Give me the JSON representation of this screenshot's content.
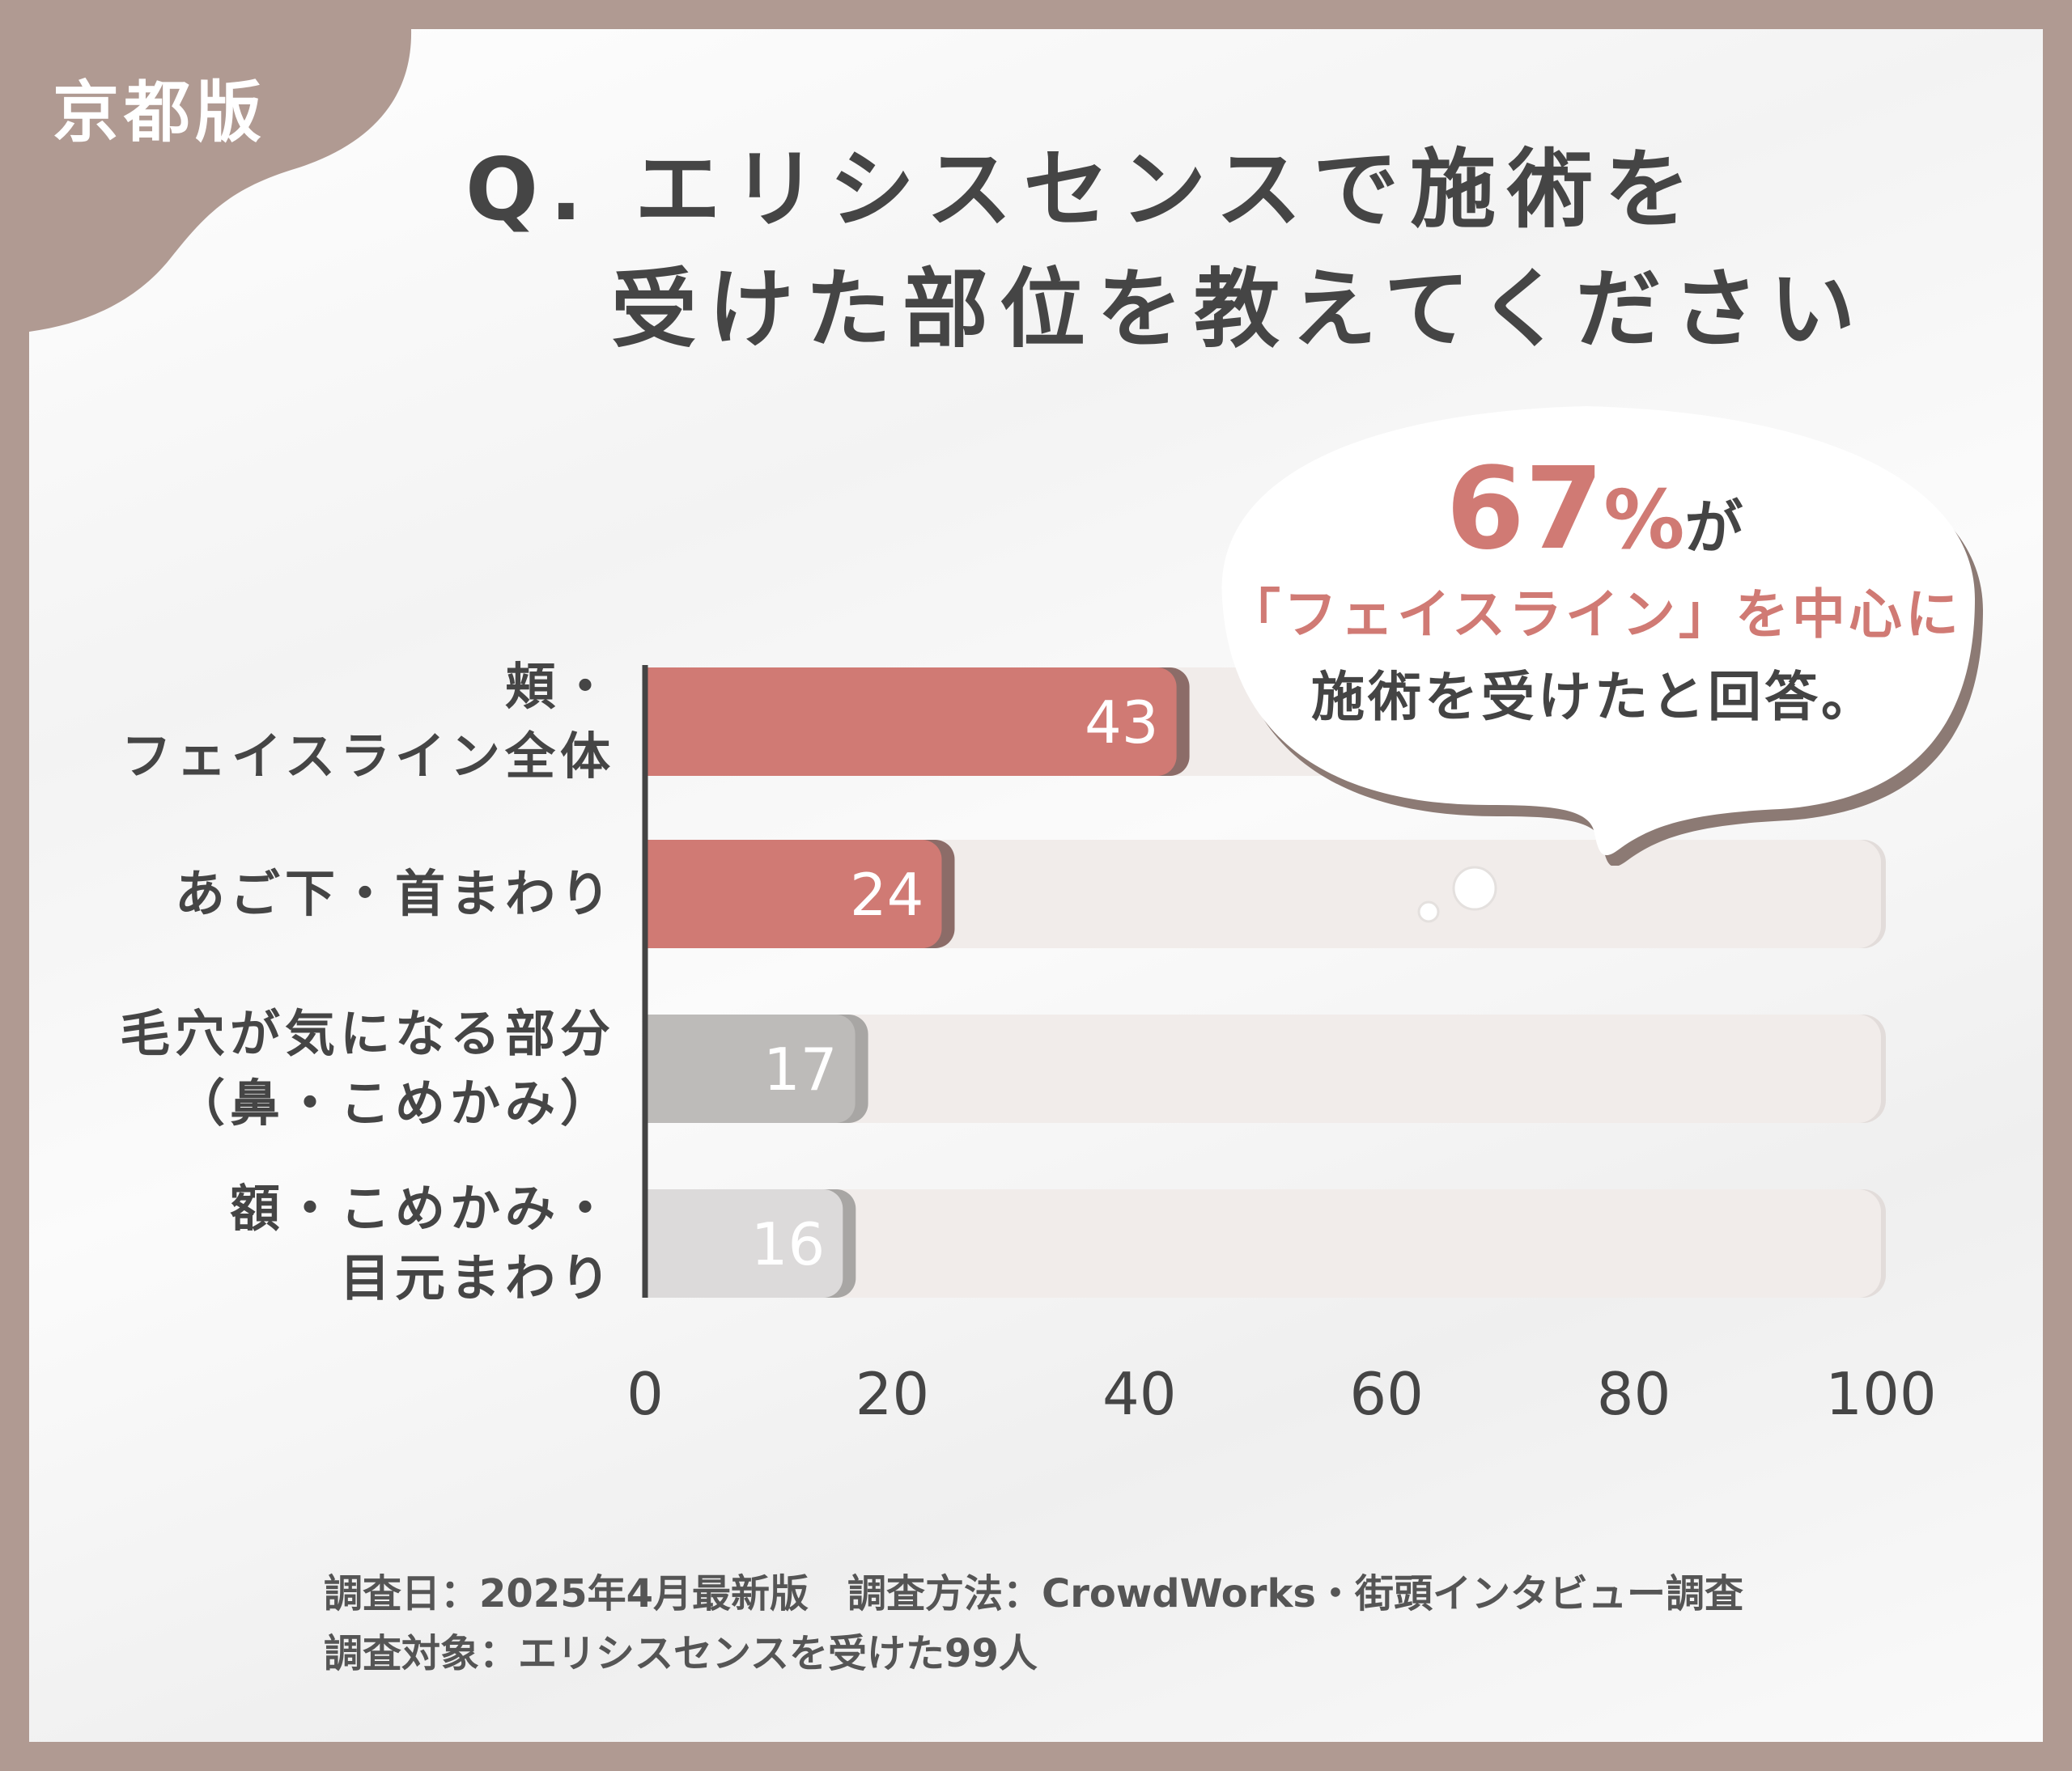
{
  "tag": "京都版",
  "title": {
    "line1": "Q. エリシスセンスで施術を",
    "line2": "受けた部位を教えてください"
  },
  "callout": {
    "percent_number": "67",
    "percent_sign": "%",
    "particle": "が",
    "line2": "「フェイスライン」を中心に",
    "line3": "施術を受けたと回答。"
  },
  "footer": {
    "line1": "調査日：2025年4月最新版　調査方法：CrowdWorks・街頭インタビュー調査",
    "line2": "調査対象：エリシスセンスを受けた99人"
  },
  "colors": {
    "border": "#b09a92",
    "highlight_bar": "#d07a74",
    "highlight_shadow": "#8c6c68",
    "gray_bar_1": "#bdbbb9",
    "gray_bar_2": "#dcdada",
    "track": "#f1ecea",
    "text": "#454545"
  },
  "chart_data": {
    "type": "bar",
    "orientation": "horizontal",
    "categories": [
      [
        "頬・",
        "フェイスライン全体"
      ],
      [
        "あご下・首まわり"
      ],
      [
        "毛穴が気になる部分",
        "（鼻・こめかみ）"
      ],
      [
        "額・こめかみ・",
        "目元まわり"
      ]
    ],
    "values": [
      43,
      24,
      17,
      16
    ],
    "data_labels": [
      "43",
      "24",
      "17",
      "16"
    ],
    "xlim": [
      0,
      100
    ],
    "xticks": [
      "0",
      "20",
      "40",
      "60",
      "80",
      "100"
    ],
    "grid": false,
    "highlighted": [
      true,
      true,
      false,
      false
    ]
  }
}
